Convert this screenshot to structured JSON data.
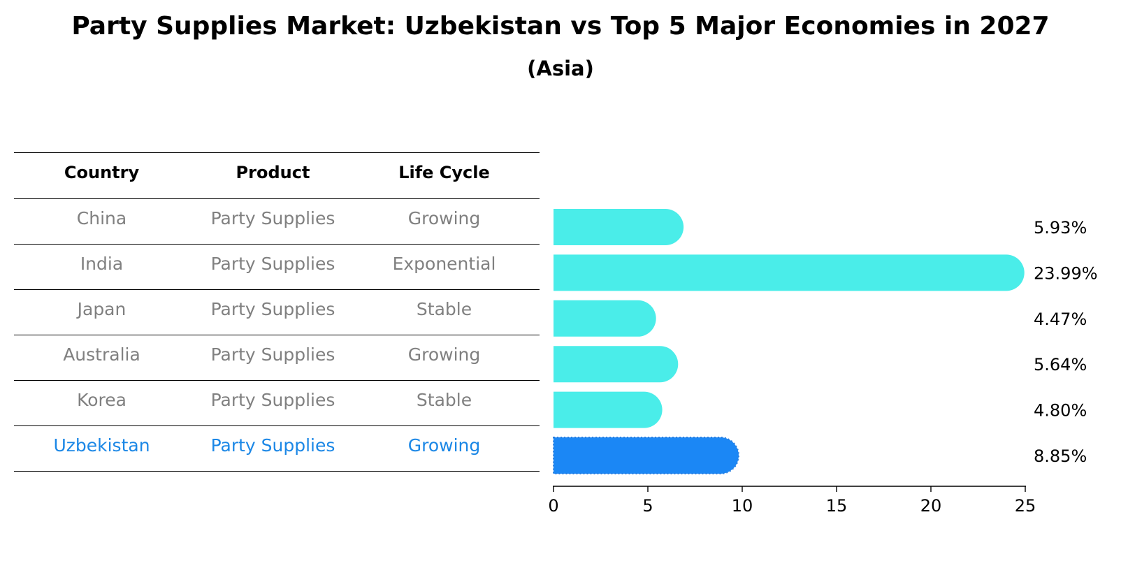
{
  "title": "Party Supplies Market: Uzbekistan vs Top 5 Major Economies in 2027",
  "subtitle": "(Asia)",
  "table": {
    "headers": [
      "Country",
      "Product",
      "Life Cycle"
    ],
    "rows": [
      {
        "country": "China",
        "product": "Party Supplies",
        "life_cycle": "Growing"
      },
      {
        "country": "India",
        "product": "Party Supplies",
        "life_cycle": "Exponential"
      },
      {
        "country": "Japan",
        "product": "Party Supplies",
        "life_cycle": "Stable"
      },
      {
        "country": "Australia",
        "product": "Party Supplies",
        "life_cycle": "Growing"
      },
      {
        "country": "Korea",
        "product": "Party Supplies",
        "life_cycle": "Stable"
      },
      {
        "country": "Uzbekistan",
        "product": "Party Supplies",
        "life_cycle": "Growing"
      }
    ]
  },
  "chart_data": {
    "type": "bar",
    "orientation": "horizontal",
    "categories": [
      "China",
      "India",
      "Japan",
      "Australia",
      "Korea",
      "Uzbekistan"
    ],
    "values": [
      5.93,
      23.99,
      4.47,
      5.64,
      4.8,
      8.85
    ],
    "labels": [
      "5.93%",
      "23.99%",
      "4.47%",
      "5.64%",
      "4.80%",
      "8.85%"
    ],
    "xlim": [
      0,
      25
    ],
    "xticks": [
      0,
      5,
      10,
      15,
      20,
      25
    ],
    "xtick_labels": [
      "0",
      "5",
      "10",
      "15",
      "20",
      "25"
    ],
    "highlight_category": "Uzbekistan",
    "colors": {
      "default": "#4aede9",
      "highlight": "#1b87f5",
      "muted_text": "#808080",
      "highlight_text": "#1b87e6"
    },
    "grid": false,
    "legend": "none"
  }
}
